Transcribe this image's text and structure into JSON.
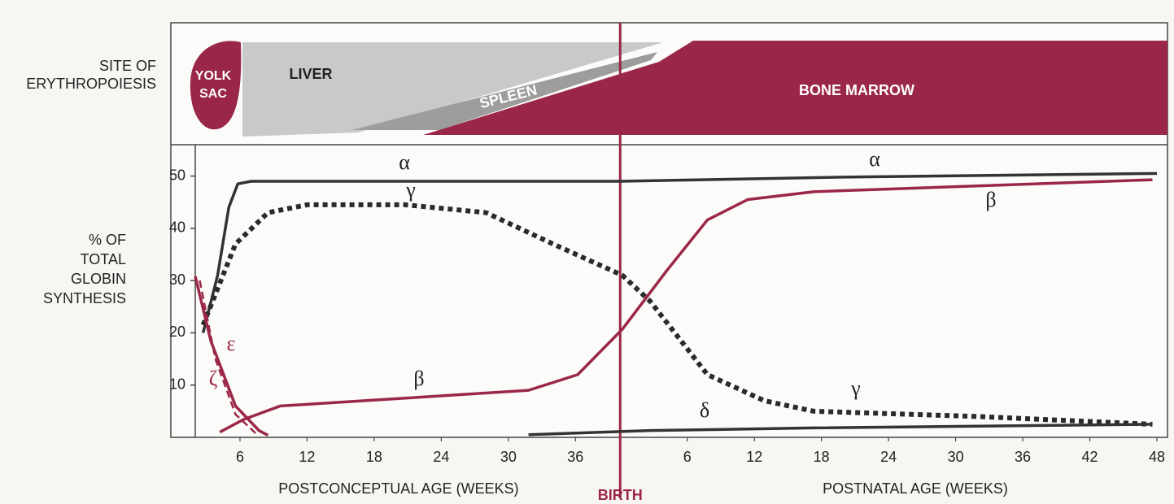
{
  "chart_data": {
    "type": "line",
    "site_panel": {
      "label": [
        "SITE OF",
        "ERYTHROPOIESIS"
      ],
      "yolk_sac": [
        "YOLK",
        "SAC"
      ],
      "liver": "LIVER",
      "spleen": "SPLEEN",
      "bone_marrow": "BONE MARROW"
    },
    "ylabel": [
      "% OF",
      "TOTAL",
      "GLOBIN",
      "SYNTHESIS"
    ],
    "xlabel_prenatal": "POSTCONCEPTUAL AGE (WEEKS)",
    "xlabel_postnatal": "POSTNATAL AGE (WEEKS)",
    "birth": {
      "label": "BIRTH",
      "x": 40
    },
    "xlim": [
      2,
      88
    ],
    "ylim": [
      0,
      56
    ],
    "xticks": [
      6,
      12,
      18,
      24,
      30,
      36,
      {
        "value": 46,
        "label": "6"
      },
      {
        "value": 52,
        "label": "12"
      },
      {
        "value": 58,
        "label": "18"
      },
      {
        "value": 64,
        "label": "24"
      },
      {
        "value": 70,
        "label": "30"
      },
      {
        "value": 76,
        "label": "36"
      },
      {
        "value": 82,
        "label": "42"
      },
      {
        "value": 88,
        "label": "48"
      }
    ],
    "yticks": [
      10,
      20,
      30,
      40,
      50
    ],
    "series": [
      {
        "name": "α",
        "color": "#333333",
        "style": "solid",
        "x": [
          2.7,
          4,
          5,
          5.8,
          7,
          40,
          60,
          88
        ],
        "values": [
          20,
          31,
          44,
          48.5,
          49,
          49,
          49.8,
          50.5
        ]
      },
      {
        "name": "γ",
        "color": "#2a2a2a",
        "style": "dotted",
        "x": [
          2.7,
          5.6,
          8.5,
          12,
          20.8,
          28,
          34,
          40.2,
          42.7,
          47.8,
          52.9,
          57.3,
          71.8,
          87.6
        ],
        "values": [
          21.5,
          37,
          43,
          44.5,
          44.5,
          43,
          37,
          31,
          26,
          12,
          7,
          5,
          4,
          2.5
        ]
      },
      {
        "name": "β",
        "color": "#9b2748",
        "style": "solid",
        "x": [
          4.2,
          6.3,
          9.6,
          20.8,
          31.8,
          36.2,
          40.2,
          44.2,
          47.8,
          51.4,
          57.3,
          87.6
        ],
        "values": [
          1,
          3.4,
          6,
          7.5,
          9,
          12,
          20.7,
          32,
          41.6,
          45.5,
          47,
          49.3
        ]
      },
      {
        "name": "ε",
        "color": "#9b2748",
        "style": "solid",
        "x": [
          2,
          3.4,
          5.6,
          7.7,
          8.5
        ],
        "values": [
          30.8,
          18.4,
          6,
          1.3,
          0.4
        ]
      },
      {
        "name": "ζ",
        "color": "#9b2748",
        "style": "dashed",
        "x": [
          2.4,
          3.8,
          5.6,
          7.4
        ],
        "values": [
          30,
          15,
          4.4,
          0.8
        ]
      },
      {
        "name": "δ",
        "color": "#333333",
        "style": "solid",
        "x": [
          31.8,
          42.7,
          57.3,
          87.6
        ],
        "values": [
          0.5,
          1.3,
          1.8,
          2.5
        ]
      }
    ]
  }
}
